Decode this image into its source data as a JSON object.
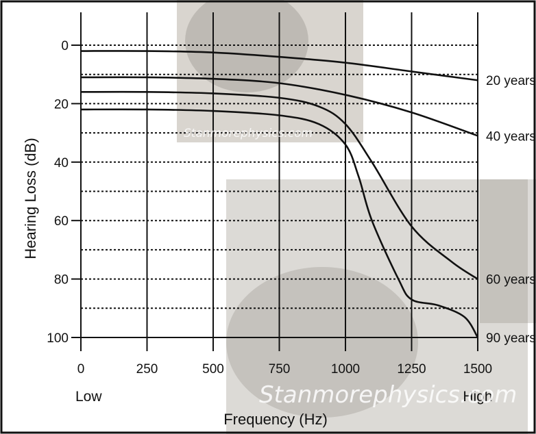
{
  "watermark": "Stanmorephysics.com",
  "chart_data": {
    "type": "line",
    "xlabel": "Frequency (Hz)",
    "ylabel": "Hearing Loss (dB)",
    "x_ticks": [
      0,
      250,
      500,
      750,
      1000,
      1250,
      1500
    ],
    "y_ticks": [
      0,
      20,
      40,
      60,
      80,
      100
    ],
    "x_end_labels": {
      "low": "Low",
      "high": "High"
    },
    "xlim": [
      0,
      1500
    ],
    "ylim": [
      0,
      100
    ],
    "y_inverted": true,
    "grid": "vertical solid, horizontal dotted every 10 dB",
    "series": [
      {
        "name": "20 years",
        "x": [
          0,
          250,
          500,
          750,
          1000,
          1250,
          1500
        ],
        "y": [
          2,
          2,
          2.5,
          4,
          6,
          9,
          12
        ]
      },
      {
        "name": "40 years",
        "x": [
          0,
          250,
          500,
          750,
          1000,
          1250,
          1500
        ],
        "y": [
          11,
          11,
          11.5,
          13,
          17,
          23,
          31
        ]
      },
      {
        "name": "60 years",
        "x": [
          0,
          250,
          500,
          750,
          900,
          1000,
          1100,
          1250,
          1400,
          1500
        ],
        "y": [
          16,
          16,
          16.5,
          18,
          21,
          27,
          40,
          62,
          74,
          80
        ]
      },
      {
        "name": "90 years",
        "x": [
          0,
          250,
          500,
          750,
          900,
          1000,
          1050,
          1100,
          1200,
          1250,
          1350,
          1450,
          1500
        ],
        "y": [
          22,
          22,
          22.5,
          24,
          27,
          34,
          45,
          60,
          80,
          87,
          89,
          93,
          100
        ]
      }
    ]
  }
}
